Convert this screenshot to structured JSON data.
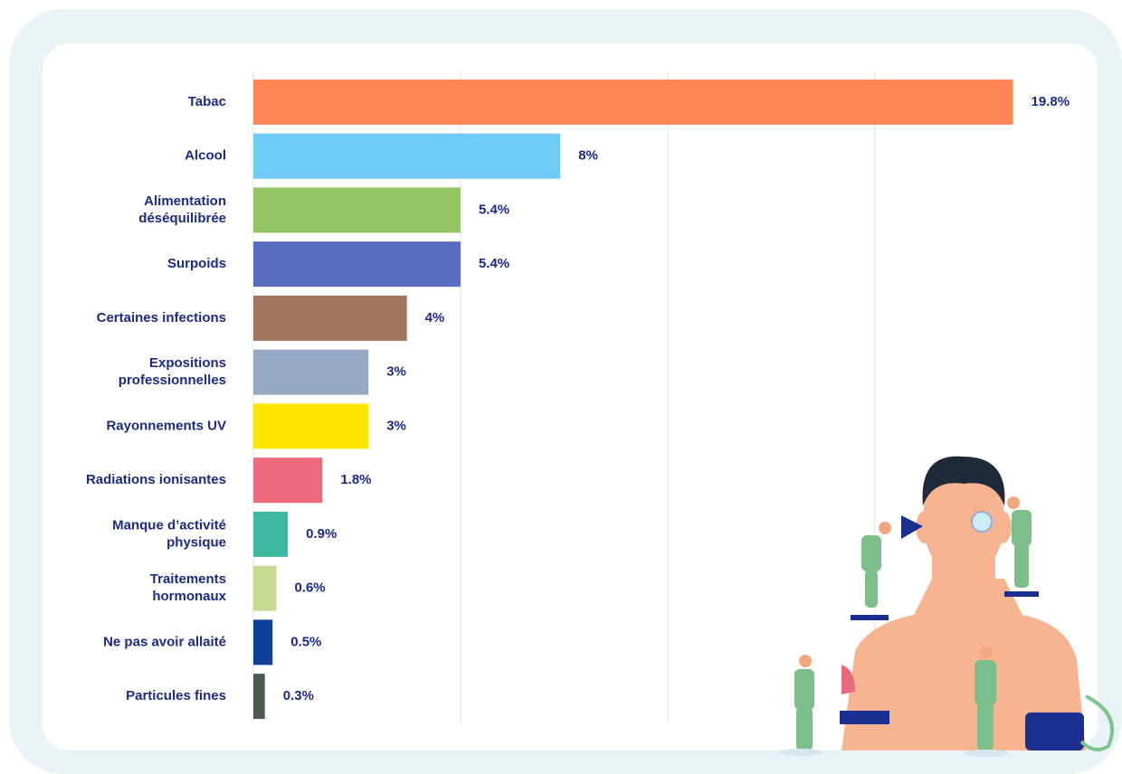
{
  "chart_data": {
    "type": "bar",
    "orientation": "horizontal",
    "categories": [
      "Tabac",
      "Alcool",
      "Alimentation\ndéséquilibrée",
      "Surpoids",
      "Certaines infections",
      "Expositions\nprofessionnelles",
      "Rayonnements UV",
      "Radiations ionisantes",
      "Manque d’activité\nphysique",
      "Traitements\nhormonaux",
      "Ne pas avoir allaité",
      "Particules fines"
    ],
    "values": [
      19.8,
      8,
      5.4,
      5.4,
      4,
      3,
      3,
      1.8,
      0.9,
      0.6,
      0.5,
      0.3
    ],
    "value_labels": [
      "19.8%",
      "8%",
      "5.4%",
      "5.4%",
      "4%",
      "3%",
      "3%",
      "1.8%",
      "0.9%",
      "0.6%",
      "0.5%",
      "0.3%"
    ],
    "colors": [
      "#ff8455",
      "#6fcbf5",
      "#93c462",
      "#5a6cbf",
      "#a0735c",
      "#94a9c2",
      "#ffe600",
      "#ee6b7e",
      "#3db8a0",
      "#c6da90",
      "#0f3f96",
      "#4a5c52"
    ],
    "xlim": [
      0,
      20
    ],
    "grid_lines": [
      0,
      5.4,
      10.8,
      16.2
    ]
  }
}
